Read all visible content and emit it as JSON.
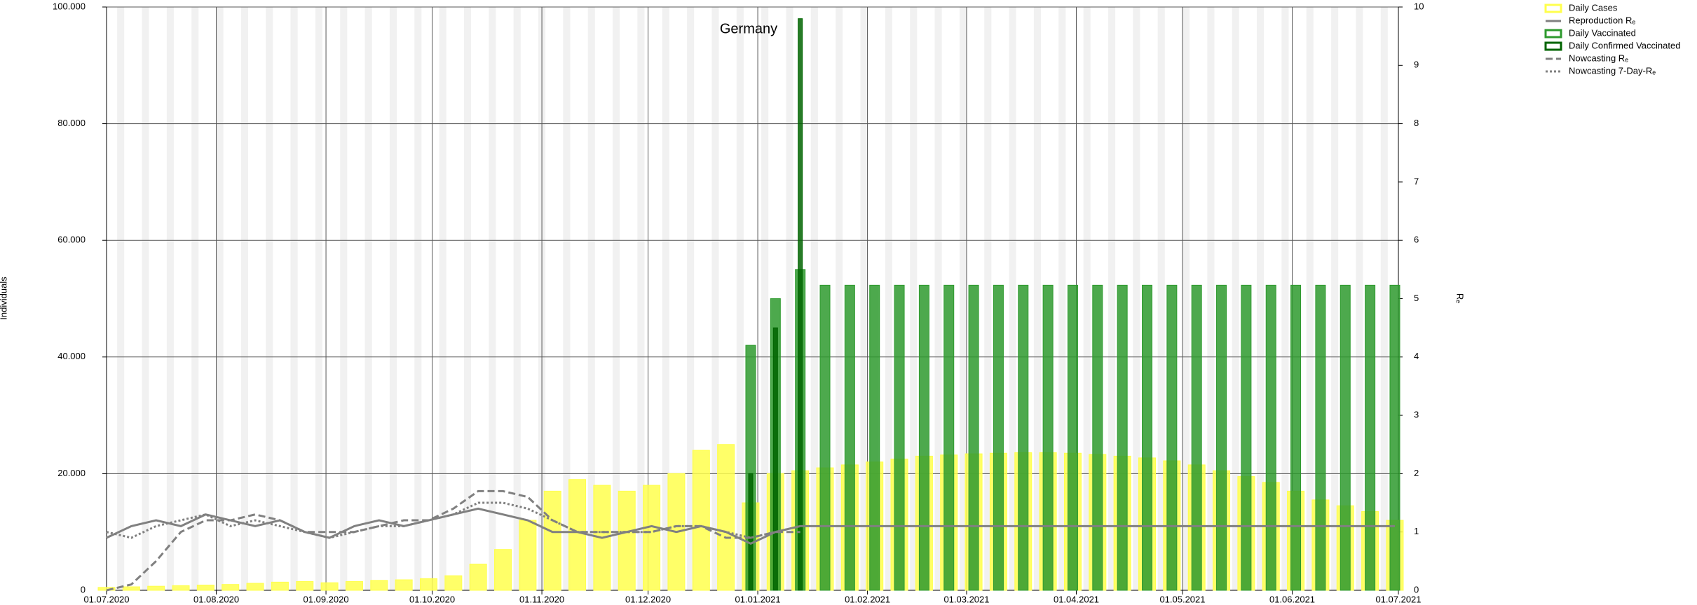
{
  "chart_data": {
    "type": "bar",
    "title": "Germany",
    "y_label": "Individuals",
    "y2_label": "Rₑ",
    "x": [
      "01.07.2020",
      "08.07.2020",
      "15.07.2020",
      "22.07.2020",
      "29.07.2020",
      "05.08.2020",
      "12.08.2020",
      "19.08.2020",
      "26.08.2020",
      "02.09.2020",
      "09.09.2020",
      "16.09.2020",
      "23.09.2020",
      "30.09.2020",
      "07.10.2020",
      "14.10.2020",
      "21.10.2020",
      "28.10.2020",
      "04.11.2020",
      "11.11.2020",
      "18.11.2020",
      "25.11.2020",
      "02.12.2020",
      "09.12.2020",
      "16.12.2020",
      "23.12.2020",
      "30.12.2020",
      "06.01.2021",
      "13.01.2021",
      "20.01.2021",
      "27.01.2021",
      "03.02.2021",
      "10.02.2021",
      "17.02.2021",
      "24.02.2021",
      "03.03.2021",
      "10.03.2021",
      "17.03.2021",
      "24.03.2021",
      "31.03.2021",
      "07.04.2021",
      "14.04.2021",
      "21.04.2021",
      "28.04.2021",
      "05.05.2021",
      "12.05.2021",
      "19.05.2021",
      "26.05.2021",
      "02.06.2021",
      "09.06.2021",
      "16.06.2021",
      "23.06.2021",
      "30.06.2021"
    ],
    "xlim": [
      "01.07.2020",
      "01.07.2021"
    ],
    "xticks": [
      "01.07.2020",
      "01.08.2020",
      "01.09.2020",
      "01.10.2020",
      "01.11.2020",
      "01.12.2020",
      "01.01.2021",
      "01.02.2021",
      "01.03.2021",
      "01.04.2021",
      "01.05.2021",
      "01.06.2021",
      "01.07.2021"
    ],
    "ylim": [
      0,
      100000
    ],
    "yticks": [
      0,
      {
        "value": 20000,
        "label": "20.000"
      },
      {
        "value": 40000,
        "label": "40.000"
      },
      {
        "value": 60000,
        "label": "60.000"
      },
      {
        "value": 80000,
        "label": "80.000"
      },
      {
        "value": 100000,
        "label": "100.000"
      }
    ],
    "y2lim": [
      0,
      10
    ],
    "y2ticks": [
      0,
      1,
      2,
      3,
      4,
      5,
      6,
      7,
      8,
      9,
      10
    ],
    "grid": true,
    "legend": "top-right",
    "series": [
      {
        "name": "Daily Cases",
        "type": "bar",
        "color": "#ffff4d",
        "values": [
          500,
          600,
          700,
          800,
          900,
          1000,
          1200,
          1400,
          1500,
          1300,
          1500,
          1700,
          1800,
          2000,
          2500,
          4500,
          7000,
          12000,
          17000,
          19000,
          18000,
          17000,
          18000,
          20000,
          24000,
          25000,
          15000,
          20000,
          20500,
          21000,
          21500,
          22000,
          22500,
          23000,
          23200,
          23400,
          23500,
          23600,
          23600,
          23500,
          23300,
          23000,
          22700,
          22200,
          21500,
          20500,
          19500,
          18500,
          17000,
          15500,
          14500,
          13500,
          12000
        ]
      },
      {
        "name": "Reproduction Rₑ",
        "type": "line",
        "style": "solid",
        "axis": "y2",
        "color": "#808080",
        "values": [
          0.9,
          1.1,
          1.2,
          1.1,
          1.3,
          1.2,
          1.1,
          1.2,
          1.0,
          0.9,
          1.1,
          1.2,
          1.1,
          1.2,
          1.3,
          1.4,
          1.3,
          1.2,
          1.0,
          1.0,
          0.9,
          1.0,
          1.1,
          1.0,
          1.1,
          1.0,
          0.8,
          1.0,
          1.1,
          1.1,
          1.1,
          1.1,
          1.1,
          1.1,
          1.1,
          1.1,
          1.1,
          1.1,
          1.1,
          1.1,
          1.1,
          1.1,
          1.1,
          1.1,
          1.1,
          1.1,
          1.1,
          1.1,
          1.1,
          1.1,
          1.1,
          1.1,
          1.1
        ]
      },
      {
        "name": "Daily Vaccinated",
        "type": "bar",
        "color": "#2e9a2e",
        "values": [
          null,
          null,
          null,
          null,
          null,
          null,
          null,
          null,
          null,
          null,
          null,
          null,
          null,
          null,
          null,
          null,
          null,
          null,
          null,
          null,
          null,
          null,
          null,
          null,
          null,
          null,
          42000,
          50000,
          55000,
          52300,
          52300,
          52300,
          52300,
          52300,
          52300,
          52300,
          52300,
          52300,
          52300,
          52300,
          52300,
          52300,
          52300,
          52300,
          52300,
          52300,
          52300,
          52300,
          52300,
          52300,
          52300,
          52300,
          52300
        ]
      },
      {
        "name": "Daily Confirmed Vaccinated",
        "type": "bar",
        "color": "#006400",
        "values": [
          null,
          null,
          null,
          null,
          null,
          null,
          null,
          null,
          null,
          null,
          null,
          null,
          null,
          null,
          null,
          null,
          null,
          null,
          null,
          null,
          null,
          null,
          null,
          null,
          null,
          null,
          20000,
          45000,
          98000,
          null,
          null,
          null,
          null,
          null,
          null,
          null,
          null,
          null,
          null,
          null,
          null,
          null,
          null,
          null,
          null,
          null,
          null,
          null,
          null,
          null,
          null,
          null,
          null
        ]
      },
      {
        "name": "Nowcasting Rₑ",
        "type": "line",
        "style": "dashed",
        "axis": "y2",
        "color": "#808080",
        "values": [
          0,
          0.1,
          0.5,
          1.0,
          1.2,
          1.2,
          1.3,
          1.2,
          1.0,
          1.0,
          1.0,
          1.1,
          1.2,
          1.2,
          1.4,
          1.7,
          1.7,
          1.6,
          1.2,
          1.0,
          1.0,
          1.0,
          1.0,
          1.1,
          1.1,
          0.9,
          0.9,
          1.0,
          1.0,
          null,
          null,
          null,
          null,
          null,
          null,
          null,
          null,
          null,
          null,
          null,
          null,
          null,
          null,
          null,
          null,
          null,
          null,
          null,
          null,
          null,
          null,
          null,
          null
        ]
      },
      {
        "name": "Nowcasting 7-Day-Rₑ",
        "type": "line",
        "style": "dotted",
        "axis": "y2",
        "color": "#808080",
        "values": [
          1.0,
          0.9,
          1.1,
          1.2,
          1.3,
          1.1,
          1.2,
          1.1,
          1.0,
          0.9,
          1.0,
          1.1,
          1.1,
          1.2,
          1.3,
          1.5,
          1.5,
          1.4,
          1.2,
          1.0,
          1.0,
          1.0,
          1.0,
          1.1,
          1.1,
          1.0,
          0.9,
          1.0,
          1.1,
          null,
          null,
          null,
          null,
          null,
          null,
          null,
          null,
          null,
          null,
          null,
          null,
          null,
          null,
          null,
          null,
          null,
          null,
          null,
          null,
          null,
          null,
          null,
          null
        ]
      }
    ]
  }
}
